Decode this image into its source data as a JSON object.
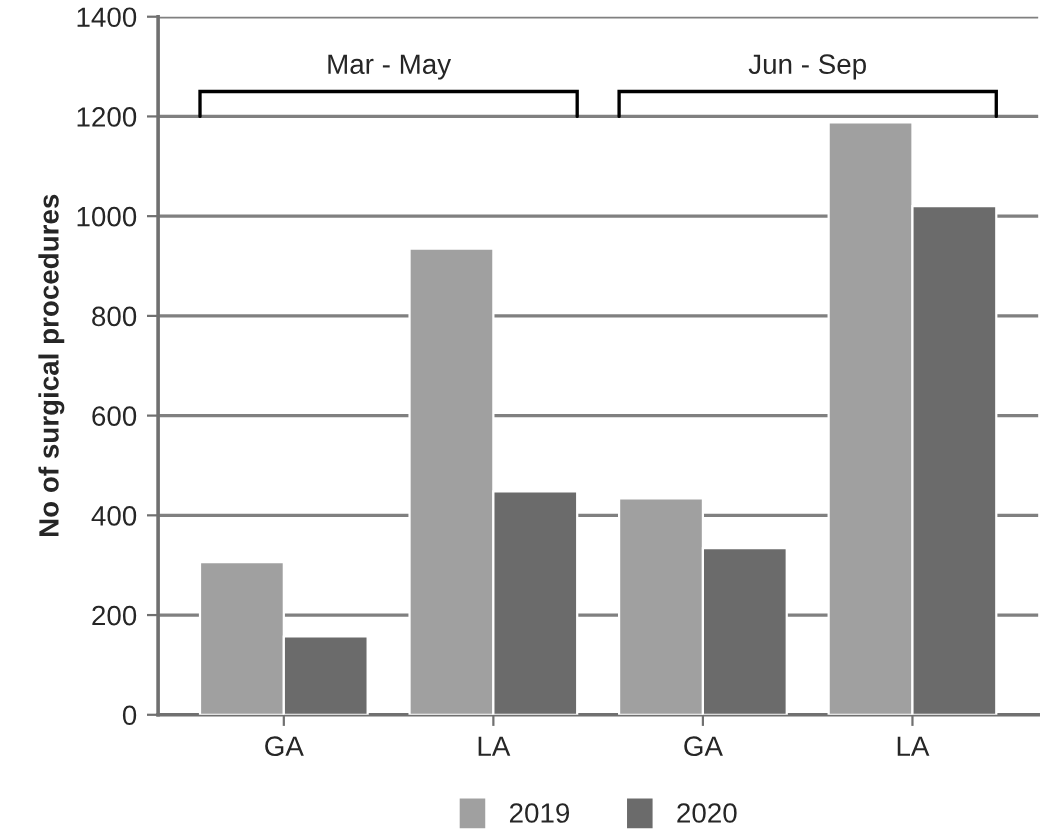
{
  "chart_data": {
    "type": "bar",
    "ylabel": "No of surgical procedures",
    "categories": [
      "GA",
      "LA",
      "GA",
      "LA"
    ],
    "series": [
      {
        "name": "2019",
        "color": "#a0a0a0",
        "values": [
          306,
          935,
          434,
          1188
        ]
      },
      {
        "name": "2020",
        "color": "#6b6b6b",
        "values": [
          157,
          448,
          334,
          1020
        ]
      }
    ],
    "ylim": [
      0,
      1400
    ],
    "yticks": [
      0,
      200,
      400,
      600,
      800,
      1000,
      1200,
      1400
    ],
    "grid": "y",
    "legend": "bottom",
    "annotations": [
      "Mar - May",
      "Jun - Sep"
    ]
  }
}
